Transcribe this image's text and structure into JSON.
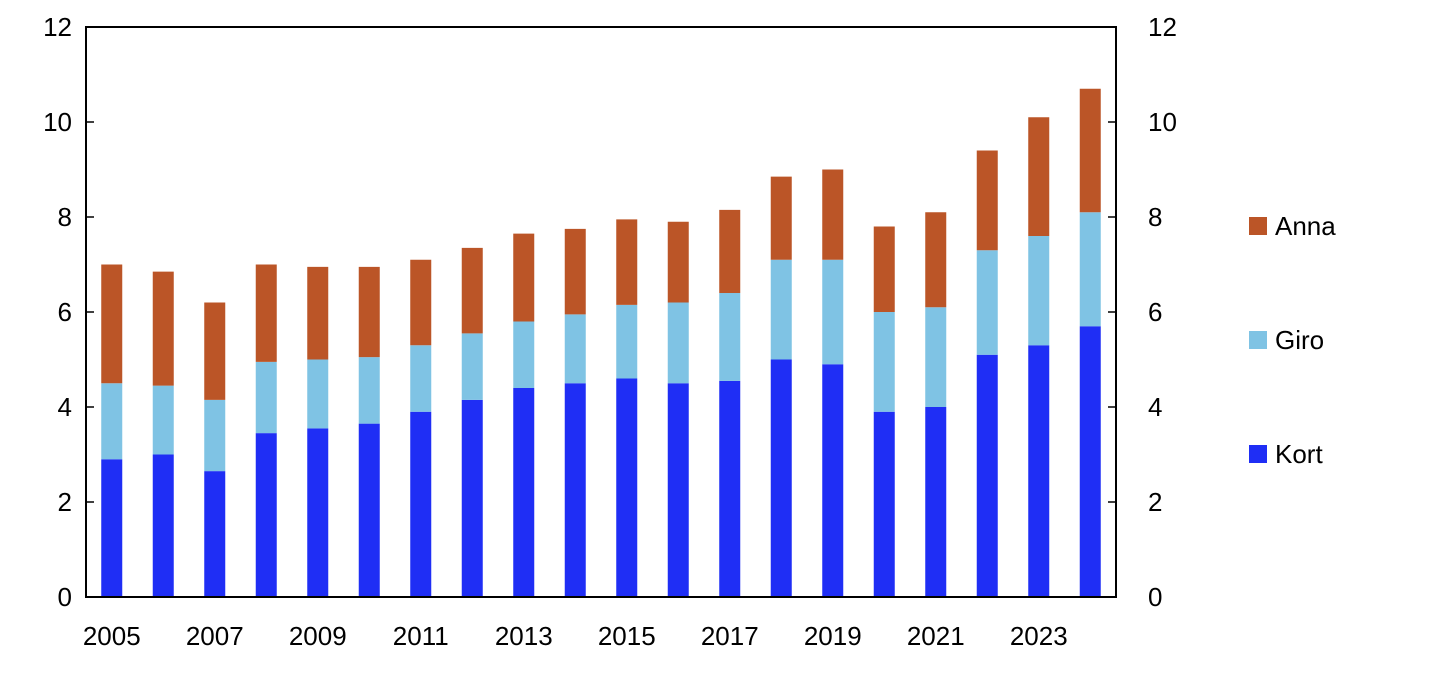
{
  "chart_data": {
    "type": "bar",
    "stacked": true,
    "title": "",
    "xlabel": "",
    "ylabel": "",
    "ylim": [
      0,
      12
    ],
    "y_ticks": [
      0,
      2,
      4,
      6,
      8,
      10,
      12
    ],
    "y_tick_labels": [
      "0",
      "2",
      "4",
      "6",
      "8",
      "10",
      "12"
    ],
    "secondary_y_axis": true,
    "grid": false,
    "legend_position": "right",
    "categories": [
      "2005",
      "2006",
      "2007",
      "2008",
      "2009",
      "2010",
      "2011",
      "2012",
      "2013",
      "2014",
      "2015",
      "2016",
      "2017",
      "2018",
      "2019",
      "2020",
      "2021",
      "2022",
      "2023",
      "2024"
    ],
    "x_tick_labels": [
      "2005",
      "2007",
      "2009",
      "2011",
      "2013",
      "2015",
      "2017",
      "2019",
      "2021",
      "2023"
    ],
    "series": [
      {
        "name": "Kort",
        "color": "#1f2ef5",
        "values": [
          2.9,
          3.0,
          2.65,
          3.45,
          3.55,
          3.65,
          3.9,
          4.15,
          4.4,
          4.5,
          4.6,
          4.5,
          4.55,
          5.0,
          4.9,
          3.9,
          4.0,
          5.1,
          5.3,
          5.7
        ]
      },
      {
        "name": "Giro",
        "color": "#7fc3e4",
        "values": [
          1.6,
          1.45,
          1.5,
          1.5,
          1.45,
          1.4,
          1.4,
          1.4,
          1.4,
          1.45,
          1.55,
          1.7,
          1.85,
          2.1,
          2.2,
          2.1,
          2.1,
          2.2,
          2.3,
          2.4
        ]
      },
      {
        "name": "Anna",
        "color": "#bb5527",
        "values": [
          2.5,
          2.4,
          2.05,
          2.05,
          1.95,
          1.9,
          1.8,
          1.8,
          1.85,
          1.8,
          1.8,
          1.7,
          1.75,
          1.75,
          1.9,
          1.8,
          2.0,
          2.1,
          2.5,
          2.6
        ]
      }
    ],
    "legend_order": [
      "Anna",
      "Giro",
      "Kort"
    ]
  }
}
